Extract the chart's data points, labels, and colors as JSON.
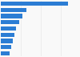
{
  "values": [
    167.0,
    64.0,
    54.0,
    46.0,
    38.0,
    33.0,
    29.0,
    26.0,
    21.0
  ],
  "bar_color": "#2b7dd4",
  "background_color": "#f9f9f9",
  "grid_color": "#e8e8e8",
  "xlim": [
    0,
    195
  ],
  "n_bars": 9
}
